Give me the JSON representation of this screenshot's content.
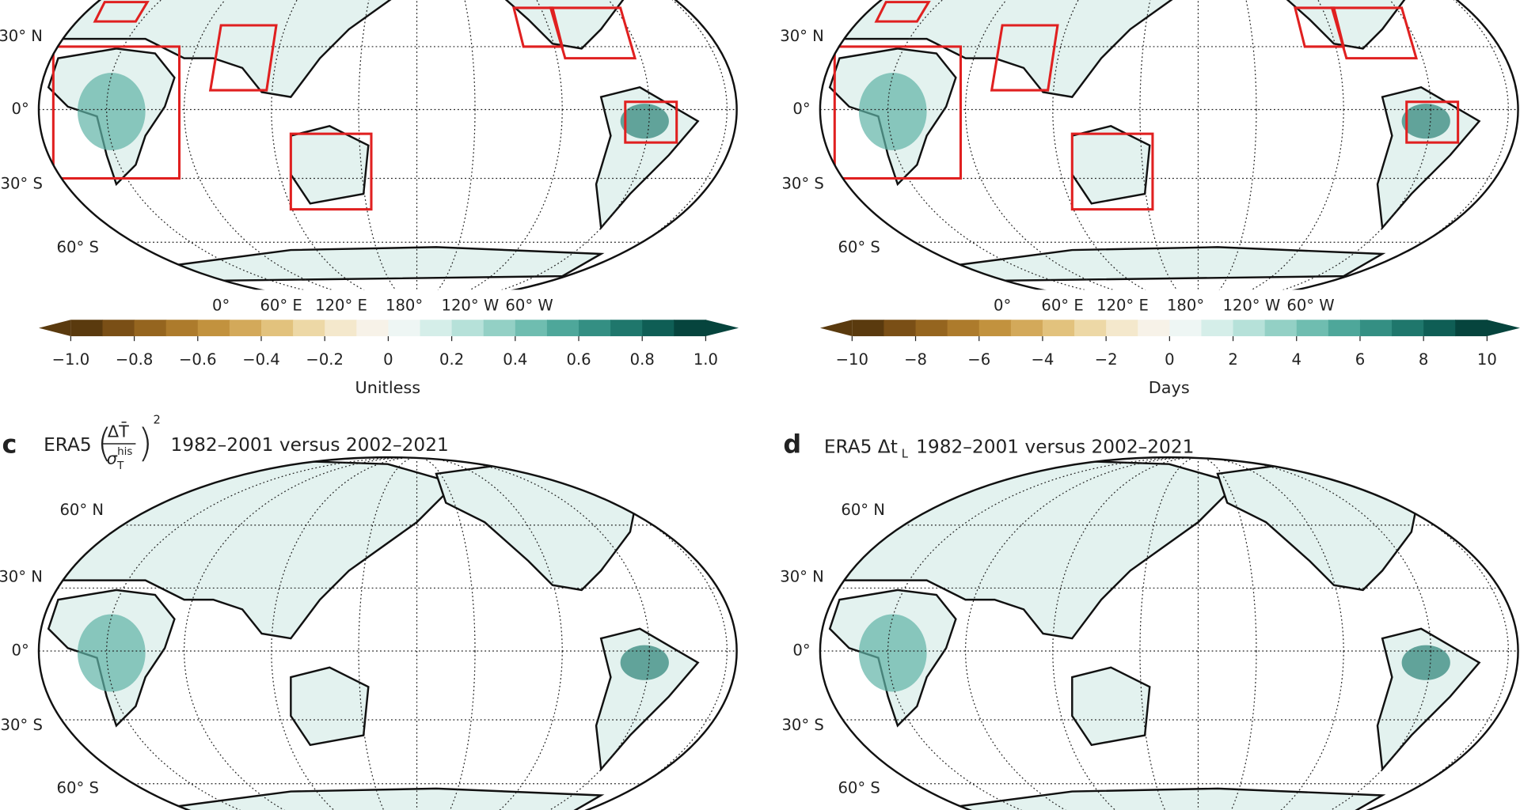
{
  "panels": [
    {
      "lat_labels": [
        "30° N",
        "0°",
        "30° S",
        "60° S"
      ],
      "lon_labels": [
        "0°",
        "60° E",
        "120° E",
        "180°",
        "120° W",
        "60° W"
      ],
      "colorbar": {
        "ticks": [
          "−1.0",
          "−0.8",
          "−0.6",
          "−0.4",
          "−0.2",
          "0",
          "0.2",
          "0.4",
          "0.6",
          "0.8",
          "1.0"
        ],
        "label": "Unitless",
        "colors": [
          "#5a3a0e",
          "#7a4f16",
          "#95651f",
          "#ad7b2c",
          "#c2923e",
          "#d3a95a",
          "#e2c27d",
          "#edd8a6",
          "#f4e8cc",
          "#f7f2e8",
          "#eef6f4",
          "#d5eee9",
          "#b6e1d9",
          "#93d0c5",
          "#6fbdb0",
          "#4ea79a",
          "#348f83",
          "#1f776c",
          "#0f5e55",
          "#06443d"
        ]
      }
    },
    {
      "lat_labels": [
        "30° N",
        "0°",
        "30° S",
        "60° S"
      ],
      "lon_labels": [
        "0°",
        "60° E",
        "120° E",
        "180°",
        "120° W",
        "60° W"
      ],
      "colorbar": {
        "ticks": [
          "−10",
          "−8",
          "−6",
          "−4",
          "−2",
          "0",
          "2",
          "4",
          "6",
          "8",
          "10"
        ],
        "label": "Days",
        "colors": [
          "#5a3a0e",
          "#7a4f16",
          "#95651f",
          "#ad7b2c",
          "#c2923e",
          "#d3a95a",
          "#e2c27d",
          "#edd8a6",
          "#f4e8cc",
          "#f7f2e8",
          "#eef6f4",
          "#d5eee9",
          "#b6e1d9",
          "#93d0c5",
          "#6fbdb0",
          "#4ea79a",
          "#348f83",
          "#1f776c",
          "#0f5e55",
          "#06443d"
        ]
      }
    },
    {
      "letter": "c",
      "title": {
        "prefix": "ERA5",
        "numerator": "ΔT̄",
        "denominator": "σ",
        "denominator_sub": "T",
        "denominator_sup": "his",
        "exponent": "2",
        "suffix": "1982–2001 versus 2002–2021"
      },
      "lat_labels": [
        "60° N",
        "30° N",
        "0°",
        "30° S",
        "60° S"
      ]
    },
    {
      "letter": "d",
      "title": {
        "prefix": "ERA5 Δt",
        "subscript": "L",
        "suffix": "1982–2001 versus 2002–2021"
      },
      "lat_labels": [
        "60° N",
        "30° N",
        "0°",
        "30° S",
        "60° S"
      ]
    }
  ]
}
